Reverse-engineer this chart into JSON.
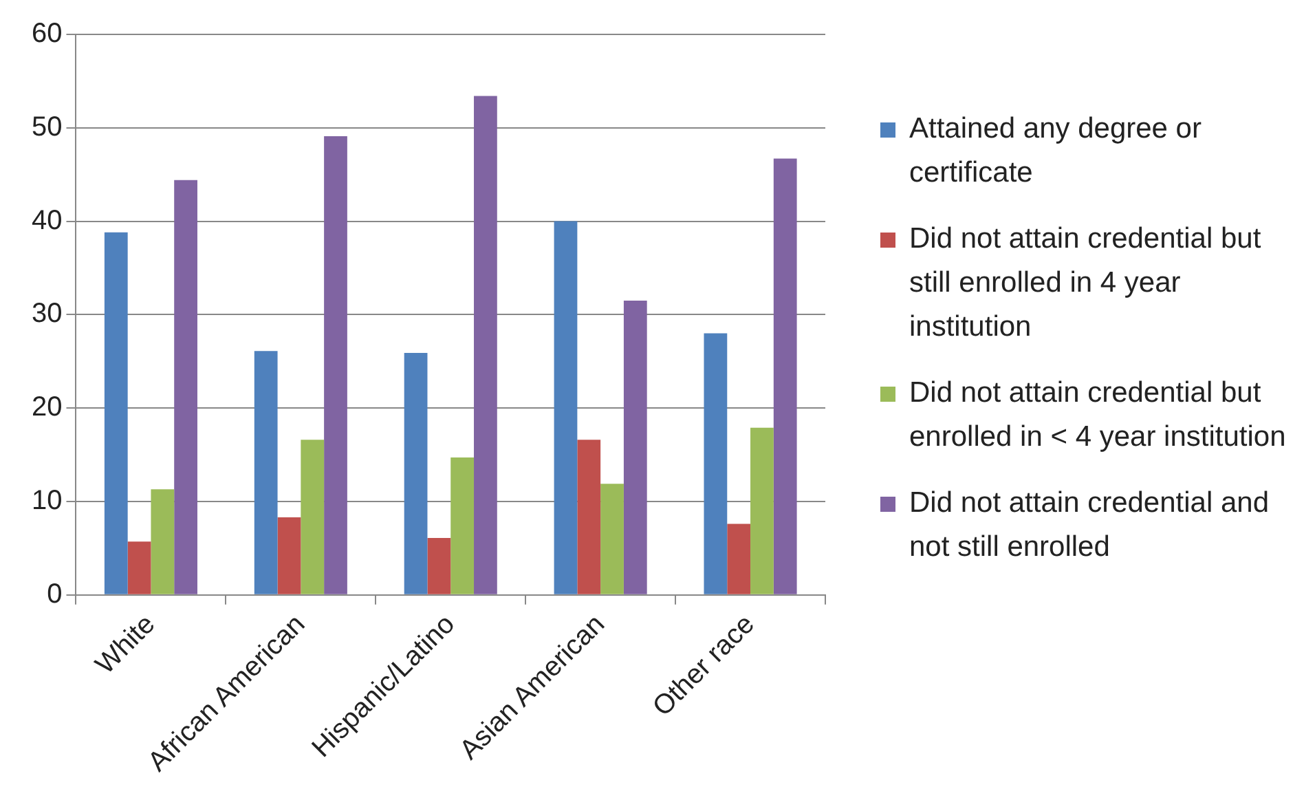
{
  "chart_data": {
    "type": "bar",
    "categories": [
      "White",
      "African American",
      "Hispanic/Latino",
      "Asian American",
      "Other race"
    ],
    "series": [
      {
        "name": "Attained any degree or certificate",
        "color": "#4f81bd",
        "values": [
          38.8,
          26.1,
          25.9,
          40.0,
          28.0
        ]
      },
      {
        "name": "Did not attain credential but still enrolled in 4 year institution",
        "color": "#c0504d",
        "values": [
          5.7,
          8.3,
          6.1,
          16.6,
          7.6
        ]
      },
      {
        "name": "Did not attain credential but enrolled in < 4 year institution",
        "color": "#9bbb59",
        "values": [
          11.3,
          16.6,
          14.7,
          11.9,
          17.9
        ]
      },
      {
        "name": "Did not attain credential and not still enrolled",
        "color": "#8064a2",
        "values": [
          44.4,
          49.1,
          53.4,
          31.5,
          46.7
        ]
      }
    ],
    "ylim": [
      0,
      60
    ],
    "yticks": [
      0,
      10,
      20,
      30,
      40,
      50,
      60
    ],
    "grid": "y",
    "legend": "right"
  }
}
